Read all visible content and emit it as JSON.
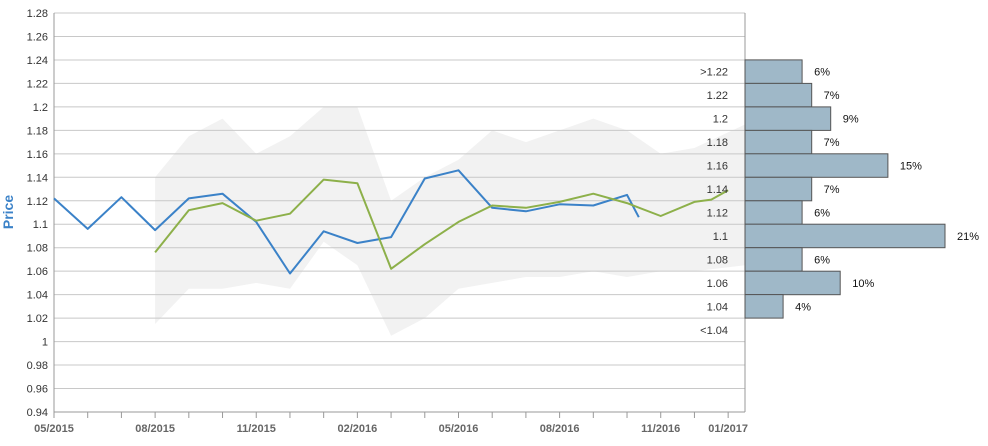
{
  "chart_data": {
    "type": "line",
    "ylabel": "Price",
    "ylim": [
      0.94,
      1.28
    ],
    "y_ticks": [
      "0.94",
      "0.96",
      "0.98",
      "1",
      "1.02",
      "1.04",
      "1.06",
      "1.08",
      "1.1",
      "1.12",
      "1.14",
      "1.16",
      "1.18",
      "1.2",
      "1.22",
      "1.24",
      "1.26",
      "1.28"
    ],
    "y_tick_values": [
      0.94,
      0.96,
      0.98,
      1.0,
      1.02,
      1.04,
      1.06,
      1.08,
      1.1,
      1.12,
      1.14,
      1.16,
      1.18,
      1.2,
      1.22,
      1.24,
      1.26,
      1.28
    ],
    "xlim": [
      "05/2015",
      "01/2017"
    ],
    "x_tick_labels": [
      "05/2015",
      "08/2015",
      "11/2015",
      "02/2016",
      "05/2016",
      "08/2016",
      "11/2016",
      "01/2017"
    ],
    "x_tick_label_months": [
      0,
      3,
      6,
      9,
      12,
      15,
      18,
      20
    ],
    "grid": true,
    "forecast_band": {
      "x_months": [
        3,
        4,
        5,
        6,
        7,
        8,
        9,
        10,
        11,
        12,
        13,
        14,
        15,
        16,
        17,
        18,
        19,
        20.5
      ],
      "upper": [
        1.14,
        1.175,
        1.19,
        1.16,
        1.175,
        1.2,
        1.2,
        1.12,
        1.14,
        1.155,
        1.18,
        1.17,
        1.18,
        1.19,
        1.18,
        1.16,
        1.165,
        1.185
      ],
      "lower": [
        1.015,
        1.045,
        1.045,
        1.05,
        1.045,
        1.085,
        1.065,
        1.005,
        1.02,
        1.045,
        1.05,
        1.055,
        1.055,
        1.06,
        1.055,
        1.06,
        1.06,
        1.065
      ]
    },
    "series": [
      {
        "color": "#3b82c8",
        "x_months": [
          0,
          1,
          2,
          3,
          4,
          5,
          6,
          7,
          8,
          9,
          10,
          11,
          12,
          13,
          14,
          15,
          16,
          17,
          17.35
        ],
        "values": [
          1.122,
          1.096,
          1.123,
          1.095,
          1.122,
          1.126,
          1.102,
          1.058,
          1.094,
          1.084,
          1.089,
          1.139,
          1.146,
          1.114,
          1.111,
          1.117,
          1.116,
          1.125,
          1.106
        ]
      },
      {
        "color": "#8db04a",
        "x_months": [
          3,
          4,
          5,
          6,
          7,
          8,
          9,
          10,
          11,
          12,
          13,
          14,
          15,
          16,
          17,
          18,
          19,
          19.5,
          20
        ],
        "values": [
          1.076,
          1.112,
          1.118,
          1.103,
          1.109,
          1.138,
          1.135,
          1.062,
          1.083,
          1.102,
          1.116,
          1.114,
          1.119,
          1.126,
          1.118,
          1.107,
          1.119,
          1.121,
          1.129
        ]
      }
    ],
    "distribution": {
      "bins": [
        {
          "label": ">1.22",
          "center": 1.23,
          "pct": 6,
          "pct_label": "6%"
        },
        {
          "label": "1.22",
          "center": 1.21,
          "pct": 7,
          "pct_label": "7%"
        },
        {
          "label": "1.2",
          "center": 1.19,
          "pct": 9,
          "pct_label": "9%"
        },
        {
          "label": "1.18",
          "center": 1.17,
          "pct": 7,
          "pct_label": "7%"
        },
        {
          "label": "1.16",
          "center": 1.15,
          "pct": 15,
          "pct_label": "15%"
        },
        {
          "label": "1.14",
          "center": 1.13,
          "pct": 7,
          "pct_label": "7%"
        },
        {
          "label": "1.12",
          "center": 1.11,
          "pct": 6,
          "pct_label": "6%"
        },
        {
          "label": "1.1",
          "center": 1.09,
          "pct": 21,
          "pct_label": "21%"
        },
        {
          "label": "1.08",
          "center": 1.07,
          "pct": 6,
          "pct_label": "6%"
        },
        {
          "label": "1.06",
          "center": 1.05,
          "pct": 10,
          "pct_label": "10%"
        },
        {
          "label": "1.04",
          "center": 1.03,
          "pct": 4,
          "pct_label": "4%"
        },
        {
          "label": "<1.04",
          "center": 1.01,
          "pct": 0,
          "pct_label": ""
        }
      ]
    },
    "colors": {
      "band": "#f2f2f2",
      "grid": "#c8c8c8",
      "axis": "#999999",
      "tick_text": "#333333",
      "x_tick_text": "#666666",
      "ylabel": "#3b82c8",
      "bar_fill": "#9fb8c8",
      "bar_stroke": "#555555"
    }
  }
}
